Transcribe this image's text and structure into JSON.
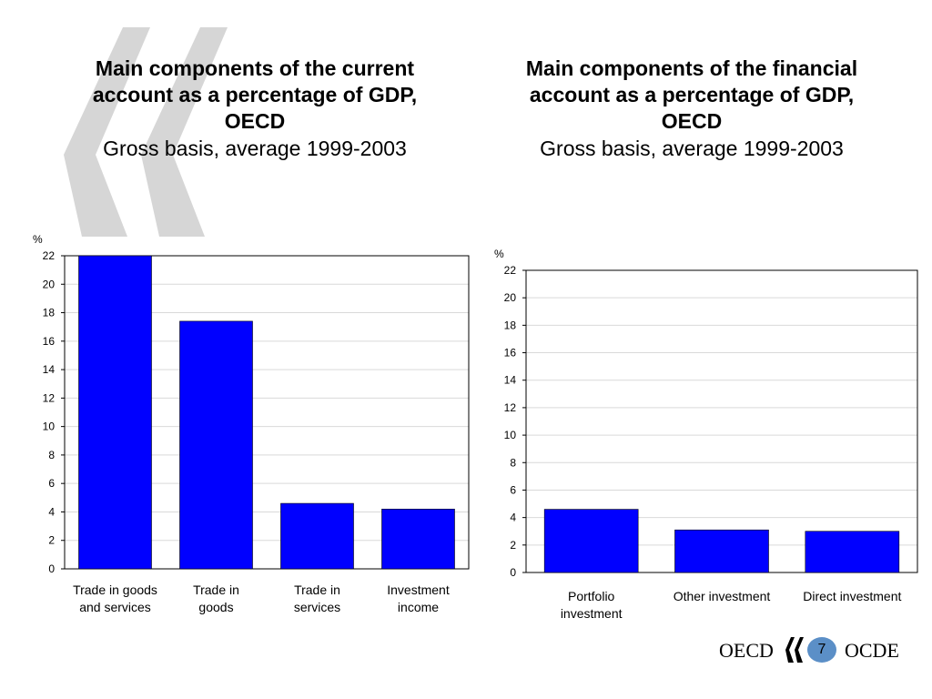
{
  "slide": {
    "page_number": "7",
    "logo_left": "OECD",
    "logo_right": "OCDE",
    "icon": "quote-mark-icon",
    "colors": {
      "bar": "#0000ff",
      "grid": "#d9d9d9",
      "quote_mark": "#d6d6d6"
    }
  },
  "left_title": {
    "line1": "Main components of the current",
    "line2": "account as a percentage of GDP,",
    "line3": "OECD",
    "subtitle": "Gross basis, average 1999-2003"
  },
  "right_title": {
    "line1": "Main components of the financial",
    "line2": "account as a percentage of GDP,",
    "line3": "OECD",
    "subtitle": "Gross basis, average 1999-2003"
  },
  "chart_data": [
    {
      "type": "bar",
      "ylabel": "%",
      "ylim": [
        0,
        22
      ],
      "yticks": [
        0,
        2,
        4,
        6,
        8,
        10,
        12,
        14,
        16,
        18,
        20,
        22
      ],
      "grid": true,
      "categories": [
        [
          "Trade in goods",
          "and services"
        ],
        [
          "Trade in",
          "goods"
        ],
        [
          "Trade in",
          "services"
        ],
        [
          "Investment",
          "income"
        ]
      ],
      "values": [
        22.0,
        17.4,
        4.6,
        4.2
      ]
    },
    {
      "type": "bar",
      "ylabel": "%",
      "ylim": [
        0,
        22
      ],
      "yticks": [
        0,
        2,
        4,
        6,
        8,
        10,
        12,
        14,
        16,
        18,
        20,
        22
      ],
      "grid": true,
      "categories": [
        [
          "Portfolio",
          "investment"
        ],
        [
          "Other investment"
        ],
        [
          "Direct investment"
        ]
      ],
      "values": [
        4.6,
        3.1,
        3.0
      ]
    }
  ]
}
